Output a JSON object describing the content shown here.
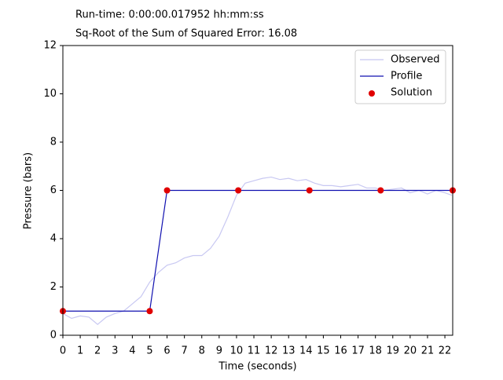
{
  "chart_data": {
    "type": "line",
    "title": "Run-time: 0:00:00.017952 hh:mm:ss",
    "subtitle": "Sq-Root of the Sum of Squared Error: 16.08",
    "xlabel": "Time (seconds)",
    "ylabel": "Pressure (bars)",
    "xlim": [
      0,
      22.45
    ],
    "ylim": [
      0,
      12
    ],
    "xticks": [
      0,
      1,
      2,
      3,
      4,
      5,
      6,
      7,
      8,
      9,
      10,
      11,
      12,
      13,
      14,
      15,
      16,
      17,
      18,
      19,
      20,
      21,
      22
    ],
    "yticks": [
      0,
      2,
      4,
      6,
      8,
      10,
      12
    ],
    "legend": "upper right",
    "series": [
      {
        "name": "Observed",
        "kind": "line",
        "color": "#c8c8f2",
        "x": [
          0,
          0.5,
          1,
          1.5,
          2,
          2.5,
          3,
          3.5,
          4,
          4.5,
          5,
          5.5,
          6,
          6.5,
          7,
          7.5,
          8,
          8.5,
          9,
          9.5,
          10,
          10.5,
          11,
          11.5,
          12,
          12.5,
          13,
          13.5,
          14,
          14.5,
          15,
          15.5,
          16,
          16.5,
          17,
          17.5,
          18,
          18.5,
          19,
          19.5,
          20,
          20.5,
          21,
          21.5,
          22,
          22.4
        ],
        "values": [
          0.9,
          0.7,
          0.8,
          0.75,
          0.45,
          0.75,
          0.9,
          1.0,
          1.3,
          1.6,
          2.2,
          2.6,
          2.9,
          3.0,
          3.2,
          3.3,
          3.3,
          3.6,
          4.1,
          4.9,
          5.8,
          6.3,
          6.4,
          6.5,
          6.55,
          6.45,
          6.5,
          6.4,
          6.45,
          6.3,
          6.2,
          6.2,
          6.15,
          6.2,
          6.25,
          6.1,
          6.1,
          6.0,
          6.05,
          6.1,
          5.9,
          6.0,
          5.85,
          6.0,
          5.9,
          5.8
        ]
      },
      {
        "name": "Profile",
        "kind": "line",
        "color": "#1010b0",
        "x": [
          0,
          5,
          6,
          10.1,
          14.2,
          18.3,
          22.45
        ],
        "values": [
          1,
          1,
          6,
          6,
          6,
          6,
          6
        ]
      },
      {
        "name": "Solution",
        "kind": "scatter",
        "color": "#e00000",
        "x": [
          0,
          5,
          6,
          10.1,
          14.2,
          18.3,
          22.45
        ],
        "values": [
          1,
          1,
          6,
          6,
          6,
          6,
          6
        ]
      }
    ]
  }
}
